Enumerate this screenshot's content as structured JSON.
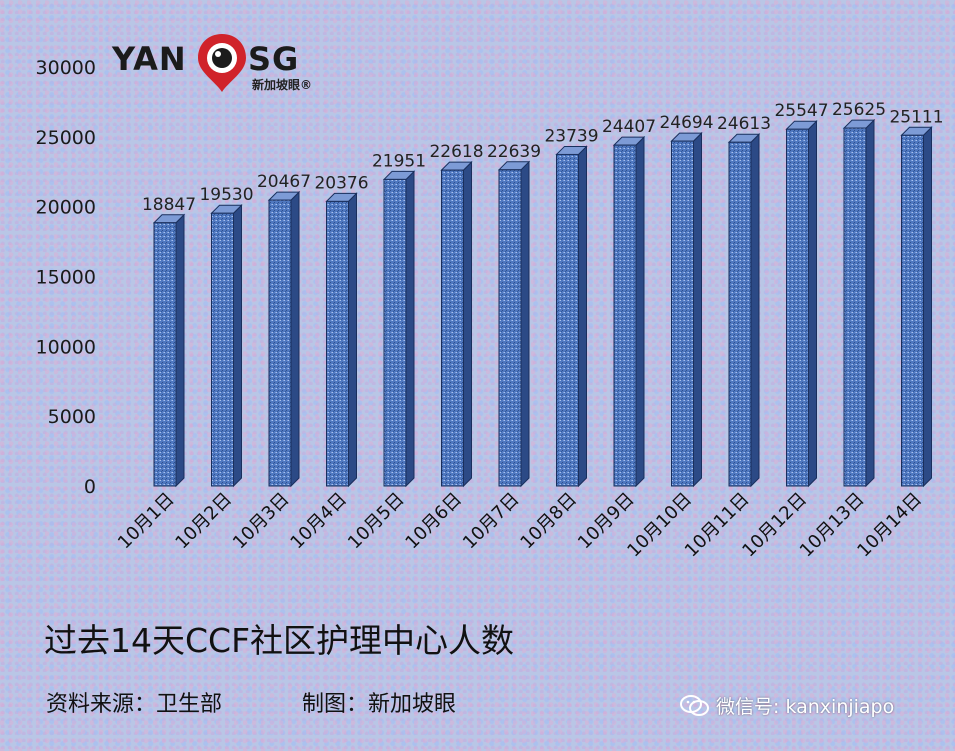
{
  "logo": {
    "left_text": "YAN",
    "right_text": "SG",
    "subtitle": "新加坡眼®",
    "icon": "eye-pin-icon"
  },
  "chart_data": {
    "type": "bar",
    "title": "过去14天CCF社区护理中心人数",
    "xlabel": "",
    "ylabel": "",
    "categories": [
      "10月1日",
      "10月2日",
      "10月3日",
      "10月4日",
      "10月5日",
      "10月6日",
      "10月7日",
      "10月8日",
      "10月9日",
      "10月10日",
      "10月11日",
      "10月12日",
      "10月13日",
      "10月14日"
    ],
    "values": [
      18847,
      19530,
      20467,
      20376,
      21951,
      22618,
      22639,
      23739,
      24407,
      24694,
      24613,
      25547,
      25625,
      25111
    ],
    "ylim": [
      0,
      30000
    ],
    "yticks": [
      0,
      5000,
      10000,
      15000,
      20000,
      25000,
      30000
    ],
    "grid": false,
    "legend": "none",
    "bar_color": "#4f78c0",
    "data_labels": true
  },
  "footer": {
    "source": "资料来源：卫生部",
    "made_by": "制图：新加坡眼"
  },
  "watermark": {
    "text": "微信号: kanxinjiapo",
    "icon": "wechat-icon"
  }
}
